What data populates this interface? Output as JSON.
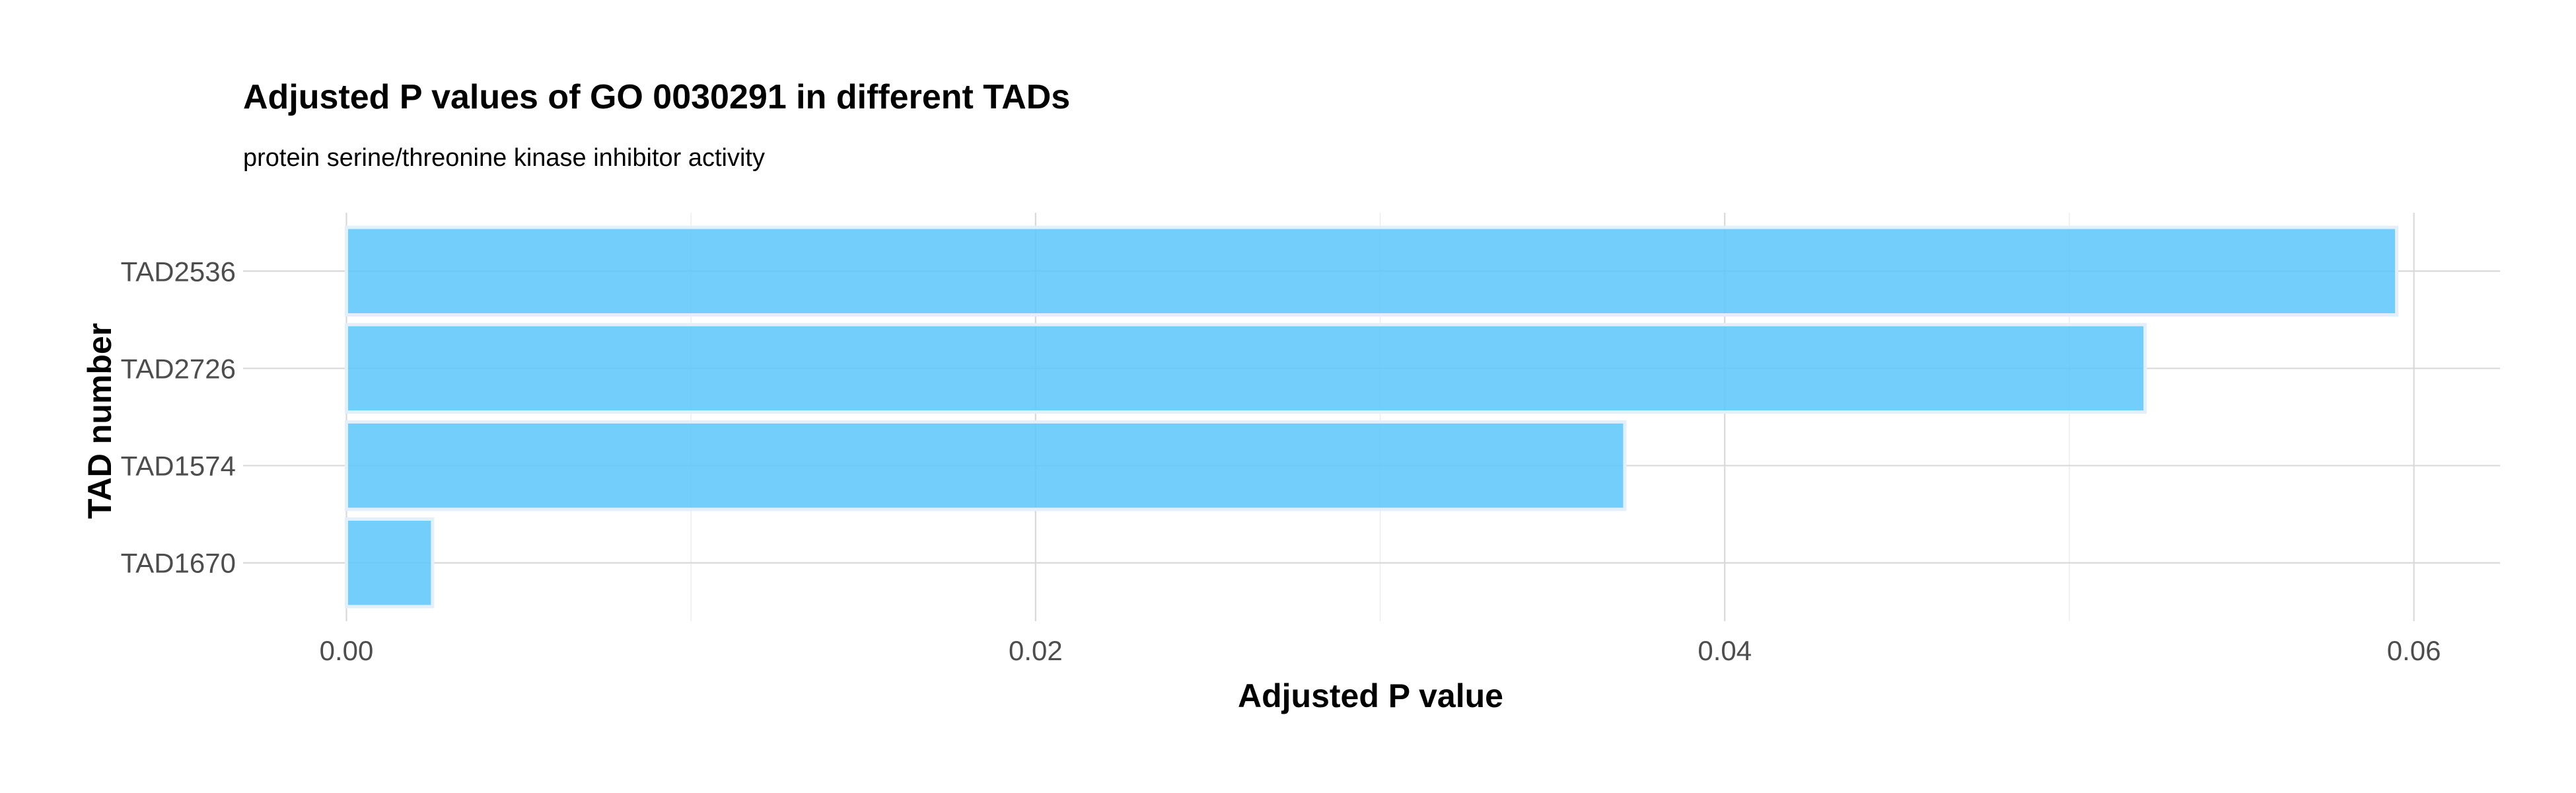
{
  "chart_data": {
    "type": "bar",
    "orientation": "horizontal",
    "title": "Adjusted P values of GO 0030291 in different TADs",
    "subtitle": "protein serine/threonine kinase inhibitor activity",
    "xlabel": "Adjusted P value",
    "ylabel": "TAD number",
    "categories": [
      "TAD2536",
      "TAD2726",
      "TAD1574",
      "TAD1670"
    ],
    "values": [
      0.0595,
      0.0522,
      0.0371,
      0.0025
    ],
    "xlim": [
      -0.003,
      0.0625
    ],
    "x_ticks": [
      0.0,
      0.02,
      0.04,
      0.06
    ],
    "x_tick_labels": [
      "0.00",
      "0.02",
      "0.04",
      "0.06"
    ],
    "grid": true,
    "legend": "none",
    "colors": {
      "bar_fill": "#5bc5fa",
      "bar_outline": "#e3f0fb",
      "grid_major": "#d9d9d9",
      "grid_minor": "#ebebeb"
    }
  }
}
